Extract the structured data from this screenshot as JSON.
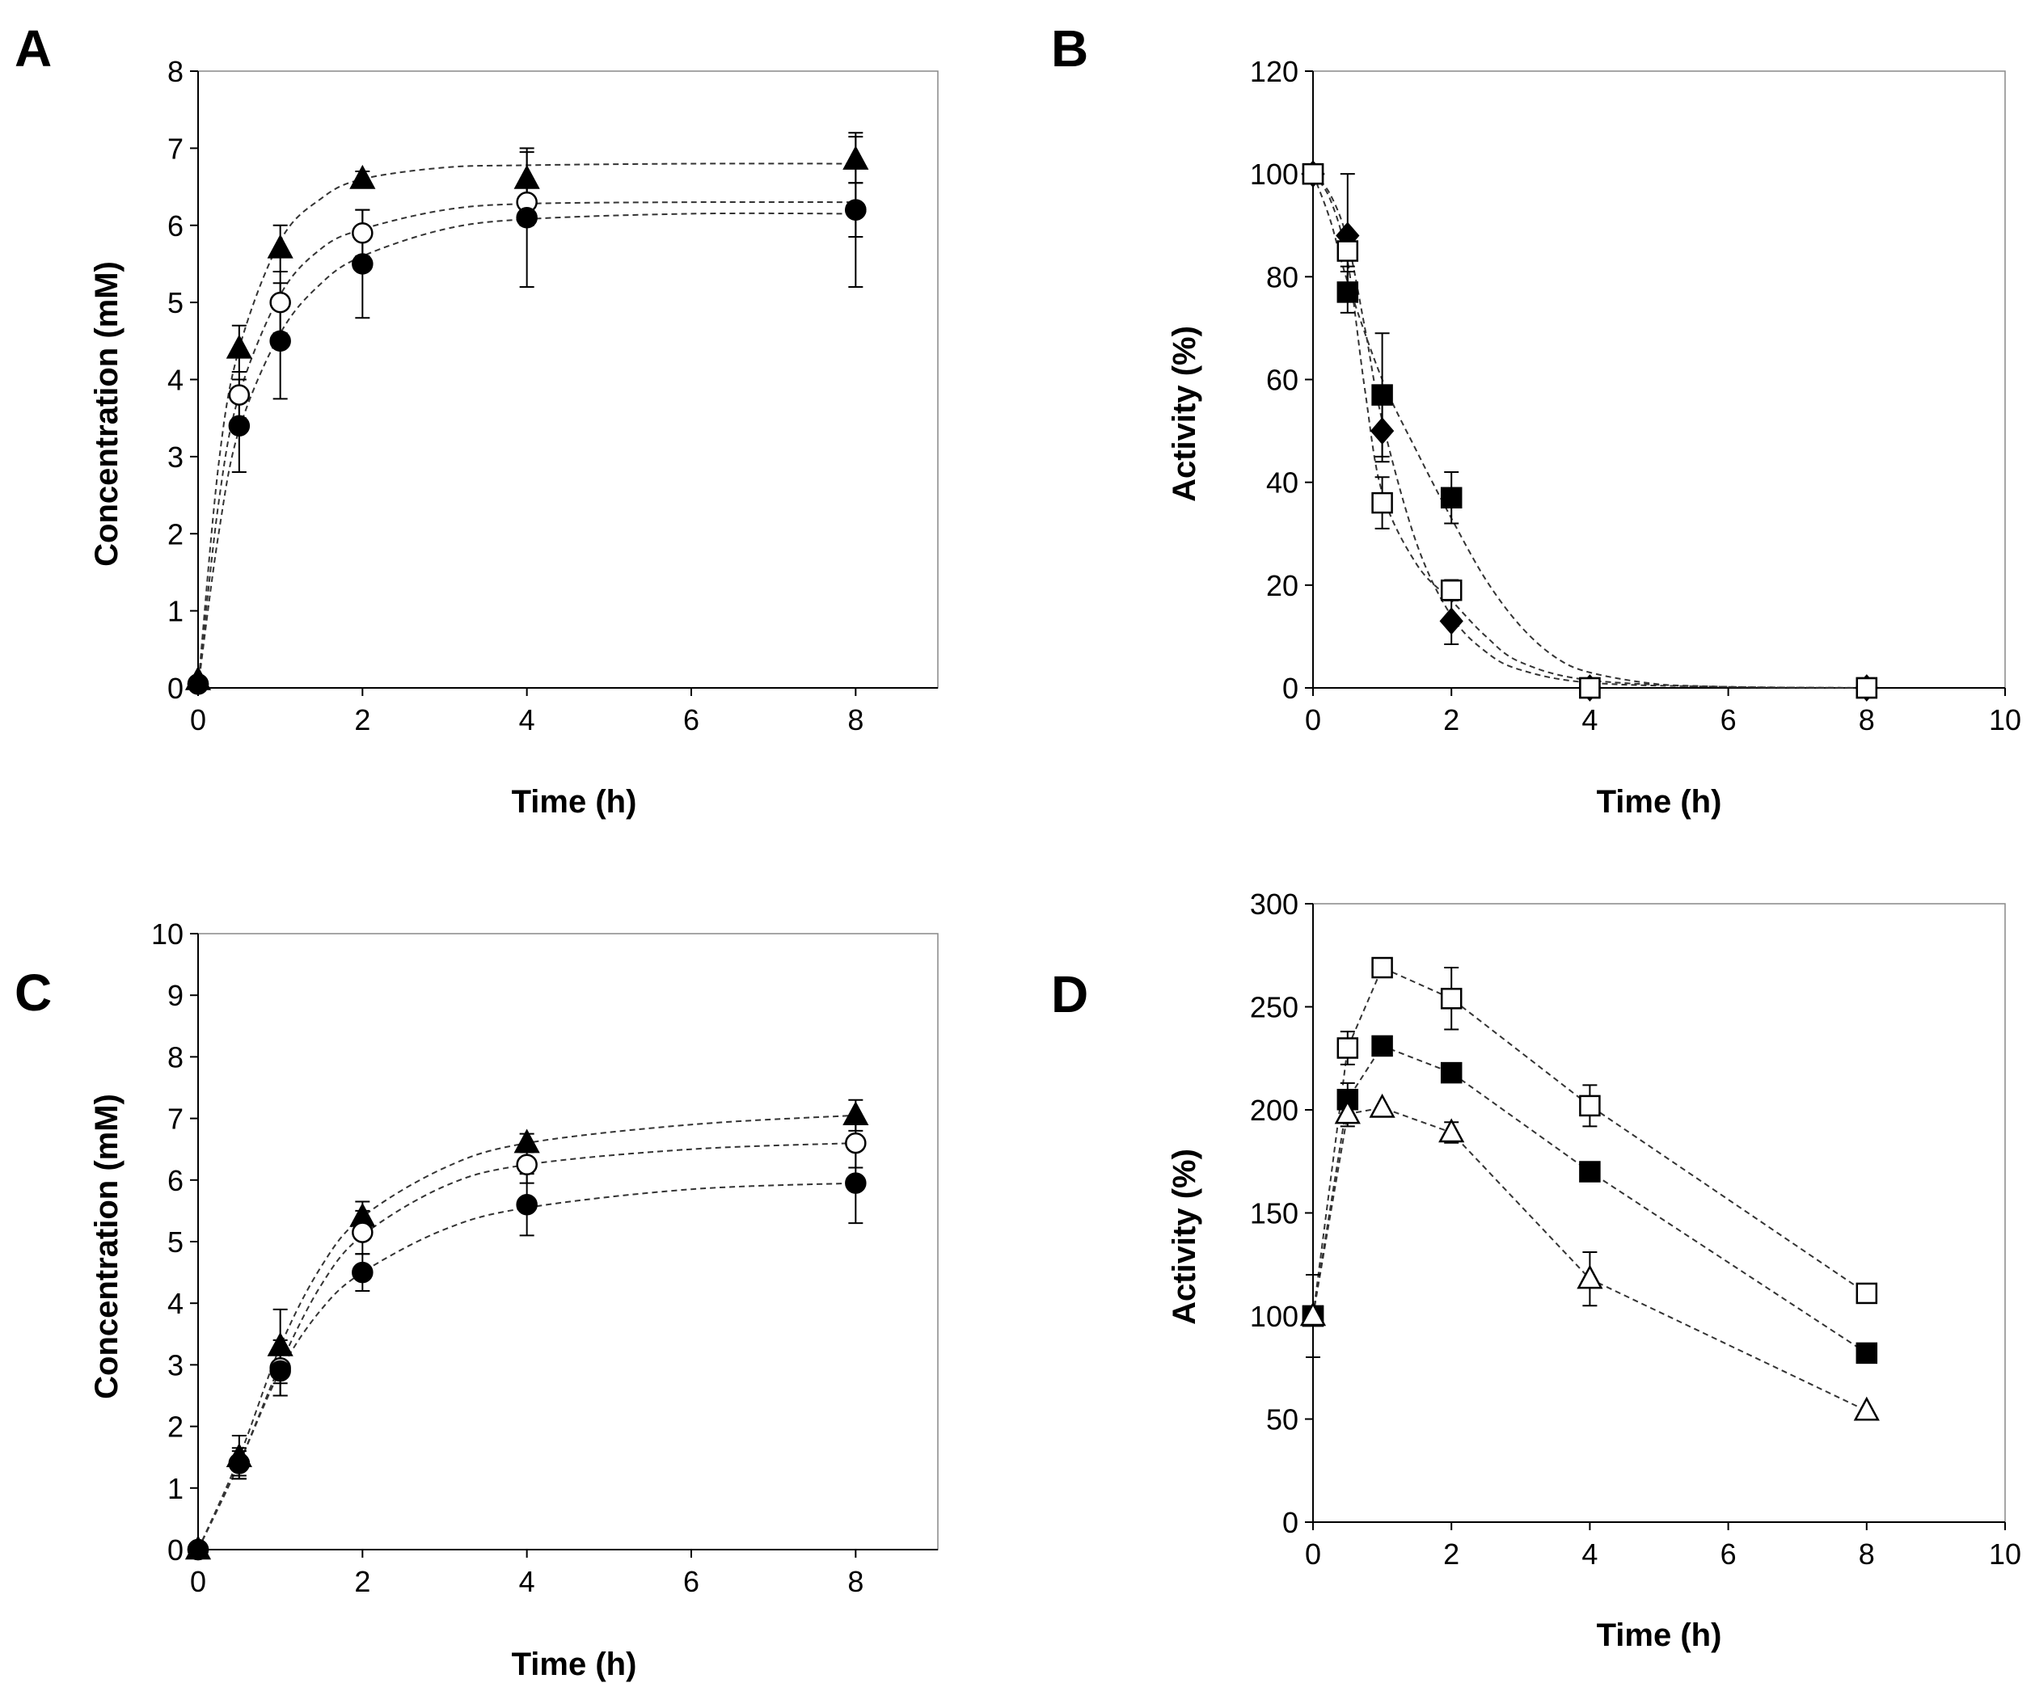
{
  "figure": {
    "background": "#ffffff",
    "ink": "#000000"
  },
  "chart_data": [
    {
      "panel": "A",
      "type": "scatter",
      "xlabel": "Time (h)",
      "ylabel": "Concentration (mM)",
      "xlim": [
        0,
        9
      ],
      "ylim": [
        0,
        8
      ],
      "xticks": [
        0,
        2,
        4,
        6,
        8
      ],
      "yticks": [
        0,
        1,
        2,
        3,
        4,
        5,
        6,
        7,
        8
      ],
      "grid": false,
      "series": [
        {
          "name": "filled-triangle",
          "marker": "triangle",
          "filled": true,
          "x": [
            0,
            0.5,
            1,
            2,
            4,
            8
          ],
          "y": [
            0.1,
            4.4,
            5.7,
            6.6,
            6.6,
            6.85
          ],
          "err": [
            0,
            0.3,
            0.3,
            0.1,
            0.35,
            0.3
          ],
          "fit": [
            [
              0,
              0
            ],
            [
              0.25,
              2.9
            ],
            [
              0.5,
              4.4
            ],
            [
              1,
              5.8
            ],
            [
              1.5,
              6.35
            ],
            [
              2,
              6.6
            ],
            [
              3,
              6.75
            ],
            [
              4,
              6.78
            ],
            [
              6,
              6.8
            ],
            [
              8,
              6.8
            ]
          ]
        },
        {
          "name": "open-circle",
          "marker": "circle",
          "filled": false,
          "x": [
            0,
            0.5,
            1,
            2,
            4,
            8
          ],
          "y": [
            0.05,
            3.8,
            5.0,
            5.9,
            6.3,
            6.2
          ],
          "err": [
            0,
            0.3,
            0.4,
            0.3,
            0.3,
            0.35
          ],
          "fit": [
            [
              0,
              0
            ],
            [
              0.25,
              2.4
            ],
            [
              0.5,
              3.8
            ],
            [
              1,
              5.1
            ],
            [
              1.5,
              5.7
            ],
            [
              2,
              5.95
            ],
            [
              3,
              6.2
            ],
            [
              4,
              6.28
            ],
            [
              6,
              6.3
            ],
            [
              8,
              6.3
            ]
          ]
        },
        {
          "name": "filled-circle",
          "marker": "circle",
          "filled": true,
          "x": [
            0,
            0.5,
            1,
            2,
            4,
            8
          ],
          "y": [
            0.05,
            3.4,
            4.5,
            5.5,
            6.1,
            6.2
          ],
          "err": [
            0,
            0.6,
            0.75,
            0.7,
            0.9,
            1.0
          ],
          "fit": [
            [
              0,
              0
            ],
            [
              0.25,
              2.0
            ],
            [
              0.5,
              3.35
            ],
            [
              1,
              4.6
            ],
            [
              1.5,
              5.25
            ],
            [
              2,
              5.6
            ],
            [
              3,
              5.95
            ],
            [
              4,
              6.08
            ],
            [
              6,
              6.15
            ],
            [
              8,
              6.15
            ]
          ]
        }
      ]
    },
    {
      "panel": "B",
      "type": "scatter",
      "xlabel": "Time (h)",
      "ylabel": "Activity (%)",
      "xlim": [
        0,
        10
      ],
      "ylim": [
        0,
        120
      ],
      "xticks": [
        0,
        2,
        4,
        6,
        8,
        10
      ],
      "yticks": [
        0,
        20,
        40,
        60,
        80,
        100,
        120
      ],
      "grid": false,
      "series": [
        {
          "name": "filled-diamond",
          "marker": "diamond",
          "filled": true,
          "x": [
            0,
            0.5,
            1,
            2,
            4,
            8
          ],
          "y": [
            100,
            88,
            50,
            13,
            0,
            0
          ],
          "err": [
            0,
            12,
            6,
            4.5,
            0,
            0
          ],
          "fit": [
            [
              0,
              100
            ],
            [
              0.25,
              96
            ],
            [
              0.5,
              87
            ],
            [
              0.75,
              70
            ],
            [
              1,
              52
            ],
            [
              1.5,
              28
            ],
            [
              2,
              14
            ],
            [
              2.5,
              7
            ],
            [
              3,
              3.5
            ],
            [
              4,
              1
            ],
            [
              6,
              0.2
            ],
            [
              8,
              0
            ]
          ]
        },
        {
          "name": "filled-square",
          "marker": "square",
          "filled": true,
          "x": [
            0,
            0.5,
            1,
            2,
            4,
            8
          ],
          "y": [
            100,
            77,
            57,
            37,
            0,
            0
          ],
          "err": [
            0,
            4,
            12,
            5,
            0,
            0
          ],
          "fit": [
            [
              0,
              100
            ],
            [
              0.25,
              91
            ],
            [
              0.5,
              79
            ],
            [
              1,
              60
            ],
            [
              1.5,
              46
            ],
            [
              2,
              33
            ],
            [
              2.5,
              21
            ],
            [
              3,
              12
            ],
            [
              3.5,
              6
            ],
            [
              4,
              3
            ],
            [
              5,
              0.7
            ],
            [
              6,
              0.2
            ],
            [
              8,
              0
            ]
          ]
        },
        {
          "name": "open-square",
          "marker": "square",
          "filled": false,
          "x": [
            0,
            0.5,
            1,
            2,
            4,
            8
          ],
          "y": [
            100,
            85,
            36,
            19,
            0,
            0
          ],
          "err": [
            0,
            3,
            5,
            2,
            0,
            0
          ],
          "fit": [
            [
              0,
              100
            ],
            [
              0.25,
              95
            ],
            [
              0.5,
              83
            ],
            [
              0.75,
              58
            ],
            [
              1,
              38
            ],
            [
              1.5,
              24
            ],
            [
              2,
              17
            ],
            [
              2.5,
              10
            ],
            [
              3,
              5
            ],
            [
              4,
              1.5
            ],
            [
              6,
              0.2
            ],
            [
              8,
              0
            ]
          ]
        }
      ]
    },
    {
      "panel": "C",
      "type": "scatter",
      "xlabel": "Time (h)",
      "ylabel": "Concentration (mM)",
      "xlim": [
        0,
        9
      ],
      "ylim": [
        0,
        10
      ],
      "xticks": [
        0,
        2,
        4,
        6,
        8
      ],
      "yticks": [
        0,
        1,
        2,
        3,
        4,
        5,
        6,
        7,
        8,
        9,
        10
      ],
      "grid": false,
      "series": [
        {
          "name": "filled-triangle",
          "marker": "triangle",
          "filled": true,
          "x": [
            0,
            0.5,
            1,
            2,
            4,
            8
          ],
          "y": [
            0,
            1.5,
            3.3,
            5.4,
            6.6,
            7.05
          ],
          "err": [
            0,
            0.35,
            0.6,
            0.25,
            0.15,
            0.25
          ],
          "fit": [
            [
              0,
              0
            ],
            [
              0.5,
              1.5
            ],
            [
              1,
              3.3
            ],
            [
              1.5,
              4.6
            ],
            [
              2,
              5.4
            ],
            [
              3,
              6.2
            ],
            [
              4,
              6.6
            ],
            [
              6,
              6.9
            ],
            [
              8,
              7.05
            ]
          ]
        },
        {
          "name": "open-circle",
          "marker": "circle",
          "filled": false,
          "x": [
            0,
            0.5,
            1,
            2,
            4,
            8
          ],
          "y": [
            0,
            1.4,
            2.95,
            5.15,
            6.25,
            6.6
          ],
          "err": [
            0,
            0.25,
            0.45,
            0.35,
            0.3,
            0.4
          ],
          "fit": [
            [
              0,
              0
            ],
            [
              0.5,
              1.4
            ],
            [
              1,
              3.0
            ],
            [
              1.5,
              4.3
            ],
            [
              2,
              5.1
            ],
            [
              3,
              5.9
            ],
            [
              4,
              6.25
            ],
            [
              6,
              6.5
            ],
            [
              8,
              6.6
            ]
          ]
        },
        {
          "name": "filled-circle",
          "marker": "circle",
          "filled": true,
          "x": [
            0,
            0.5,
            1,
            2,
            4,
            8
          ],
          "y": [
            0,
            1.4,
            2.9,
            4.5,
            5.6,
            5.95
          ],
          "err": [
            0,
            0.2,
            0.4,
            0.3,
            0.5,
            0.65
          ],
          "fit": [
            [
              0,
              0
            ],
            [
              0.5,
              1.4
            ],
            [
              1,
              2.9
            ],
            [
              1.5,
              3.9
            ],
            [
              2,
              4.5
            ],
            [
              3,
              5.2
            ],
            [
              4,
              5.55
            ],
            [
              6,
              5.85
            ],
            [
              8,
              5.95
            ]
          ]
        }
      ]
    },
    {
      "panel": "D",
      "type": "line",
      "xlabel": "Time (h)",
      "ylabel": "Activity (%)",
      "xlim": [
        0,
        10
      ],
      "ylim": [
        0,
        300
      ],
      "xticks": [
        0,
        2,
        4,
        6,
        8,
        10
      ],
      "yticks": [
        0,
        50,
        100,
        150,
        200,
        250,
        300
      ],
      "grid": false,
      "series": [
        {
          "name": "open-square",
          "marker": "square",
          "filled": false,
          "x": [
            0,
            0.5,
            1,
            2,
            4,
            8
          ],
          "y": [
            100,
            230,
            269,
            254,
            202,
            111
          ],
          "err": [
            20,
            8,
            0,
            15,
            10,
            0
          ],
          "fit": [
            [
              0,
              100
            ],
            [
              0.5,
              230
            ],
            [
              1,
              269
            ],
            [
              2,
              254
            ],
            [
              4,
              202
            ],
            [
              8,
              111
            ]
          ]
        },
        {
          "name": "filled-square",
          "marker": "square",
          "filled": true,
          "x": [
            0,
            0.5,
            1,
            2,
            4,
            8
          ],
          "y": [
            100,
            205,
            231,
            218,
            170,
            82
          ],
          "err": [
            20,
            8,
            0,
            0,
            0,
            0
          ],
          "fit": [
            [
              0,
              100
            ],
            [
              0.5,
              205
            ],
            [
              1,
              231
            ],
            [
              2,
              218
            ],
            [
              4,
              170
            ],
            [
              8,
              82
            ]
          ]
        },
        {
          "name": "open-triangle",
          "marker": "triangle",
          "filled": false,
          "x": [
            0,
            0.5,
            1,
            2,
            4,
            8
          ],
          "y": [
            100,
            198,
            201,
            189,
            118,
            54
          ],
          "err": [
            20,
            6,
            0,
            5,
            13,
            0
          ],
          "fit": [
            [
              0,
              100
            ],
            [
              0.5,
              198
            ],
            [
              1,
              201
            ],
            [
              2,
              189
            ],
            [
              4,
              118
            ],
            [
              8,
              54
            ]
          ]
        }
      ]
    }
  ]
}
